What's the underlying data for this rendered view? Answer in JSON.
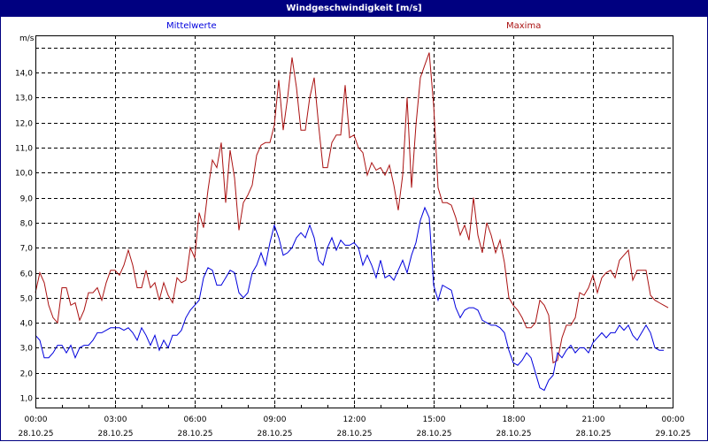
{
  "window": {
    "title": "Windgeschwindigkeit [m/s]"
  },
  "legend": {
    "mean": "Mittelwerte",
    "max": "Maxima"
  },
  "colors": {
    "titlebar": "#000080",
    "mean": "#0000dd",
    "max": "#aa1111",
    "grid": "#000000"
  },
  "axis": {
    "y_unit": "m/s"
  },
  "chart_data": {
    "type": "line",
    "title": "Windgeschwindigkeit [m/s]",
    "xlabel": "",
    "ylabel": "m/s",
    "ylim": [
      0.6,
      15.5
    ],
    "grid": true,
    "legend_position": "top",
    "y_ticks": [
      "1,0",
      "2,0",
      "3,0",
      "4,0",
      "5,0",
      "6,0",
      "7,0",
      "8,0",
      "9,0",
      "10,0",
      "11,0",
      "12,0",
      "13,0",
      "14,0"
    ],
    "x_ticks": [
      {
        "time": "00:00",
        "date": "28.10.25"
      },
      {
        "time": "03:00",
        "date": "28.10.25"
      },
      {
        "time": "06:00",
        "date": "28.10.25"
      },
      {
        "time": "09:00",
        "date": "28.10.25"
      },
      {
        "time": "12:00",
        "date": "28.10.25"
      },
      {
        "time": "15:00",
        "date": "28.10.25"
      },
      {
        "time": "18:00",
        "date": "28.10.25"
      },
      {
        "time": "21:00",
        "date": "28.10.25"
      },
      {
        "time": "00:00",
        "date": "29.10.25"
      }
    ],
    "x_interval_minutes": 10,
    "series": [
      {
        "name": "Maxima",
        "color": "#aa1111",
        "values": [
          5.2,
          6.0,
          5.6,
          4.7,
          4.2,
          4.0,
          5.4,
          5.4,
          4.7,
          4.8,
          4.1,
          4.5,
          5.2,
          5.2,
          5.4,
          4.9,
          5.6,
          6.1,
          6.1,
          5.9,
          6.3,
          6.9,
          6.3,
          5.4,
          5.4,
          6.1,
          5.4,
          5.6,
          4.9,
          5.6,
          5.1,
          4.8,
          5.8,
          5.6,
          5.7,
          7.0,
          6.6,
          8.4,
          7.8,
          9.3,
          10.5,
          10.2,
          11.2,
          8.8,
          10.9,
          9.8,
          7.7,
          8.8,
          9.1,
          9.5,
          10.7,
          11.1,
          11.2,
          11.2,
          11.9,
          13.7,
          11.7,
          13.0,
          14.6,
          13.4,
          11.7,
          11.7,
          13.0,
          13.8,
          11.9,
          10.2,
          10.2,
          11.2,
          11.5,
          11.5,
          13.5,
          11.4,
          11.5,
          11.0,
          10.8,
          9.9,
          10.4,
          10.1,
          10.2,
          9.9,
          10.3,
          9.5,
          8.5,
          9.9,
          13.0,
          9.4,
          11.9,
          13.8,
          14.3,
          14.8,
          12.7,
          9.4,
          8.8,
          8.8,
          8.7,
          8.2,
          7.5,
          7.9,
          7.3,
          9.0,
          7.5,
          6.8,
          8.0,
          7.5,
          6.8,
          7.3,
          6.4,
          5.0,
          4.7,
          4.5,
          4.2,
          3.8,
          3.8,
          4.0,
          4.9,
          4.7,
          4.3,
          2.4,
          2.5,
          3.4,
          3.9,
          3.9,
          4.2,
          5.2,
          5.1,
          5.4,
          5.9,
          5.2,
          5.8,
          6.0,
          6.1,
          5.8,
          6.5,
          6.7,
          6.9,
          5.7,
          6.1,
          6.1,
          6.1,
          5.1,
          4.9,
          4.8,
          4.7,
          4.6
        ]
      },
      {
        "name": "Mittelwerte",
        "color": "#0000dd",
        "values": [
          3.5,
          3.3,
          2.6,
          2.6,
          2.8,
          3.1,
          3.1,
          2.8,
          3.1,
          2.6,
          3.0,
          3.1,
          3.1,
          3.3,
          3.6,
          3.6,
          3.7,
          3.8,
          3.8,
          3.8,
          3.7,
          3.8,
          3.6,
          3.3,
          3.8,
          3.5,
          3.1,
          3.5,
          2.9,
          3.3,
          3.0,
          3.5,
          3.5,
          3.7,
          4.2,
          4.5,
          4.7,
          4.9,
          5.8,
          6.2,
          6.1,
          5.5,
          5.5,
          5.8,
          6.1,
          6.0,
          5.2,
          5.0,
          5.2,
          6.0,
          6.3,
          6.8,
          6.3,
          7.2,
          7.9,
          7.4,
          6.7,
          6.8,
          7.0,
          7.4,
          7.6,
          7.4,
          7.9,
          7.4,
          6.5,
          6.3,
          7.0,
          7.4,
          6.9,
          7.3,
          7.1,
          7.1,
          7.2,
          7.0,
          6.3,
          6.7,
          6.3,
          5.8,
          6.5,
          5.8,
          5.9,
          5.7,
          6.1,
          6.5,
          6.0,
          6.7,
          7.2,
          8.1,
          8.6,
          8.2,
          5.5,
          4.9,
          5.5,
          5.4,
          5.3,
          4.6,
          4.2,
          4.5,
          4.6,
          4.6,
          4.5,
          4.1,
          4.0,
          3.9,
          3.9,
          3.8,
          3.6,
          2.9,
          2.4,
          2.3,
          2.5,
          2.8,
          2.6,
          2.0,
          1.4,
          1.3,
          1.7,
          1.9,
          2.8,
          2.6,
          2.9,
          3.1,
          2.8,
          3.0,
          3.0,
          2.8,
          3.2,
          3.4,
          3.6,
          3.4,
          3.6,
          3.6,
          3.9,
          3.7,
          3.9,
          3.5,
          3.3,
          3.6,
          3.9,
          3.6,
          3.0,
          2.9,
          2.9
        ]
      }
    ]
  }
}
